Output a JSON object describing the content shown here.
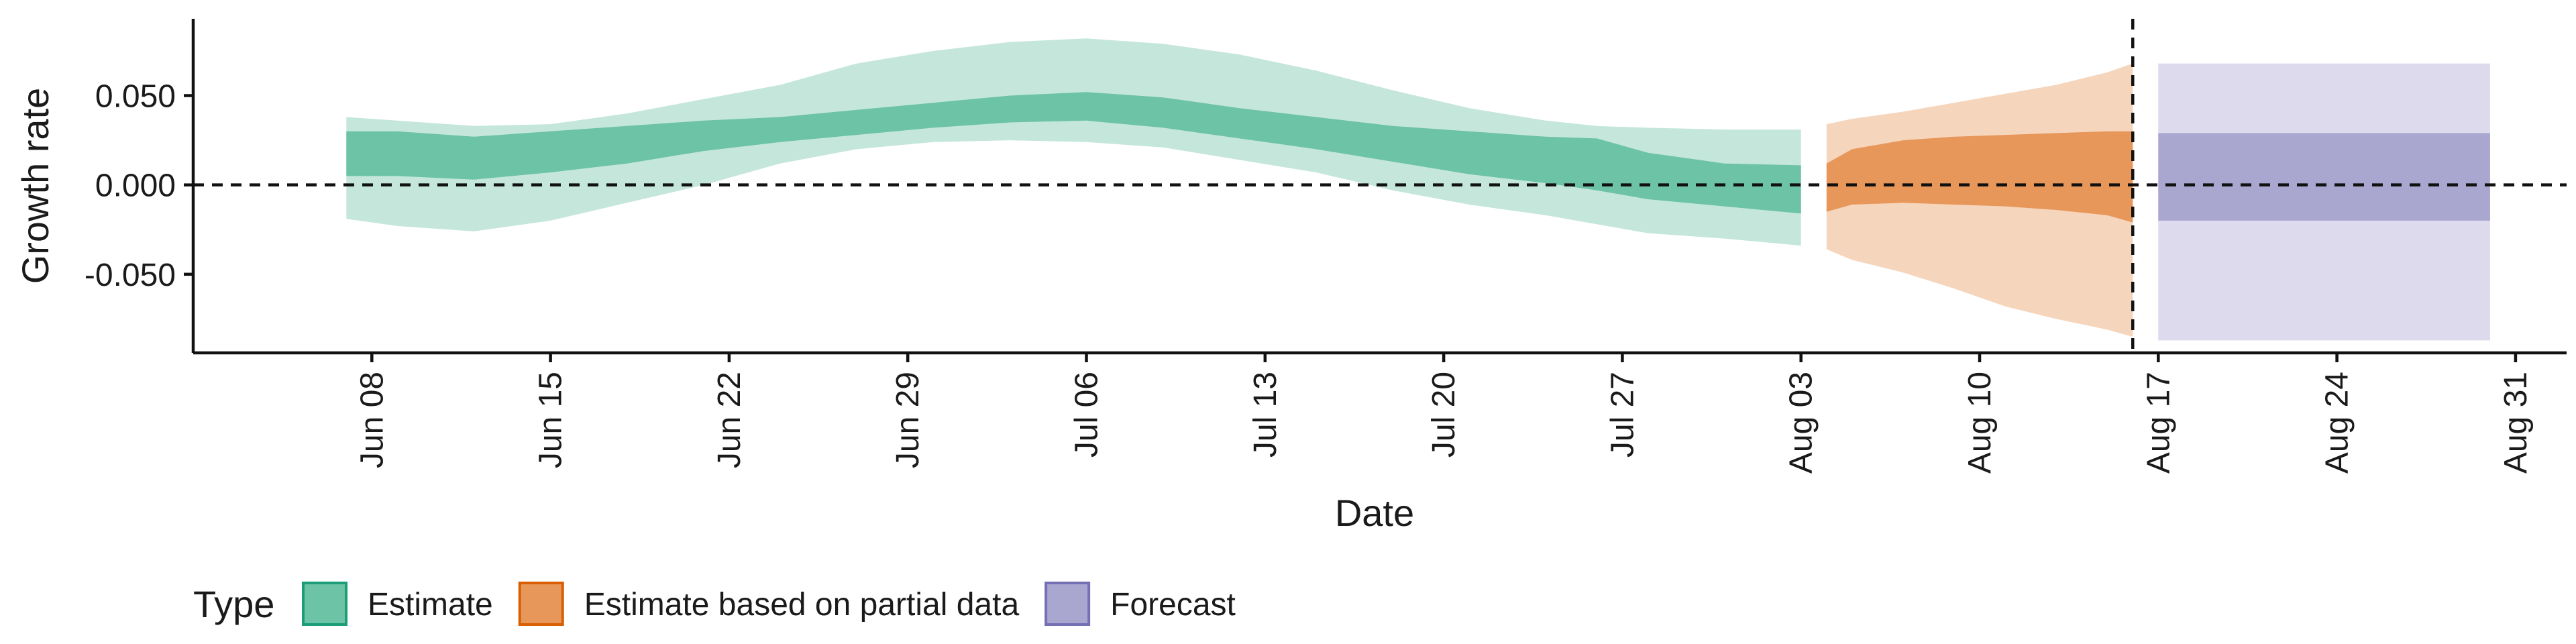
{
  "chart_data": {
    "type": "area",
    "title": "",
    "xlabel": "Date",
    "ylabel": "Growth rate",
    "x_range": [
      "2020-06-01",
      "2020-09-02"
    ],
    "ylim": [
      -0.094,
      0.093
    ],
    "y_ticks": [
      {
        "value": 0.05,
        "label": "0.050"
      },
      {
        "value": 0.0,
        "label": "0.000"
      },
      {
        "value": -0.05,
        "label": "-0.050"
      }
    ],
    "x_ticks": [
      {
        "date": "2020-06-08",
        "label": "Jun 08"
      },
      {
        "date": "2020-06-15",
        "label": "Jun 15"
      },
      {
        "date": "2020-06-22",
        "label": "Jun 22"
      },
      {
        "date": "2020-06-29",
        "label": "Jun 29"
      },
      {
        "date": "2020-07-06",
        "label": "Jul 06"
      },
      {
        "date": "2020-07-13",
        "label": "Jul 13"
      },
      {
        "date": "2020-07-20",
        "label": "Jul 20"
      },
      {
        "date": "2020-07-27",
        "label": "Jul 27"
      },
      {
        "date": "2020-08-03",
        "label": "Aug 03"
      },
      {
        "date": "2020-08-10",
        "label": "Aug 10"
      },
      {
        "date": "2020-08-17",
        "label": "Aug 17"
      },
      {
        "date": "2020-08-24",
        "label": "Aug 24"
      },
      {
        "date": "2020-08-31",
        "label": "Aug 31"
      }
    ],
    "reference_lines": {
      "horizontal_y": 0.0,
      "vertical_date": "2020-08-16"
    },
    "legend": {
      "title": "Type",
      "position": "bottom",
      "items": [
        {
          "label": "Estimate",
          "fill": "#6cc3a5",
          "stroke": "#1b9e77"
        },
        {
          "label": "Estimate based on partial data",
          "fill": "#e8975a",
          "stroke": "#d95f02"
        },
        {
          "label": "Forecast",
          "fill": "#a9a6d0",
          "stroke": "#7570b3"
        }
      ]
    },
    "series": [
      {
        "name": "Estimate",
        "inner_color": "#6cc3a5",
        "outer_color": "#c5e6db",
        "x": [
          "2020-06-07",
          "2020-06-09",
          "2020-06-12",
          "2020-06-15",
          "2020-06-18",
          "2020-06-21",
          "2020-06-24",
          "2020-06-27",
          "2020-06-30",
          "2020-07-03",
          "2020-07-06",
          "2020-07-09",
          "2020-07-12",
          "2020-07-15",
          "2020-07-18",
          "2020-07-21",
          "2020-07-24",
          "2020-07-26",
          "2020-07-28",
          "2020-07-31",
          "2020-08-03"
        ],
        "outer_upper": [
          0.038,
          0.036,
          0.033,
          0.034,
          0.04,
          0.048,
          0.056,
          0.068,
          0.075,
          0.08,
          0.082,
          0.079,
          0.073,
          0.064,
          0.053,
          0.043,
          0.036,
          0.033,
          0.032,
          0.031,
          0.031
        ],
        "inner_upper": [
          0.03,
          0.03,
          0.027,
          0.03,
          0.033,
          0.036,
          0.038,
          0.042,
          0.046,
          0.05,
          0.052,
          0.049,
          0.043,
          0.038,
          0.033,
          0.03,
          0.027,
          0.026,
          0.018,
          0.012,
          0.011
        ],
        "inner_lower": [
          0.005,
          0.005,
          0.003,
          0.007,
          0.012,
          0.019,
          0.024,
          0.028,
          0.032,
          0.035,
          0.036,
          0.032,
          0.026,
          0.02,
          0.013,
          0.006,
          0.001,
          -0.003,
          -0.008,
          -0.012,
          -0.016
        ],
        "outer_lower": [
          -0.019,
          -0.023,
          -0.026,
          -0.02,
          -0.01,
          0.0,
          0.012,
          0.02,
          0.024,
          0.025,
          0.024,
          0.021,
          0.014,
          0.007,
          -0.003,
          -0.011,
          -0.017,
          -0.022,
          -0.027,
          -0.03,
          -0.034
        ]
      },
      {
        "name": "Estimate based on partial data",
        "inner_color": "#e8975a",
        "outer_color": "#f5d5bc",
        "x": [
          "2020-08-04",
          "2020-08-05",
          "2020-08-07",
          "2020-08-09",
          "2020-08-11",
          "2020-08-13",
          "2020-08-15",
          "2020-08-16"
        ],
        "outer_upper": [
          0.034,
          0.037,
          0.041,
          0.046,
          0.051,
          0.056,
          0.063,
          0.068
        ],
        "inner_upper": [
          0.012,
          0.02,
          0.025,
          0.027,
          0.028,
          0.029,
          0.03,
          0.03
        ],
        "inner_lower": [
          -0.015,
          -0.011,
          -0.01,
          -0.011,
          -0.012,
          -0.014,
          -0.017,
          -0.021
        ],
        "outer_lower": [
          -0.036,
          -0.042,
          -0.049,
          -0.058,
          -0.068,
          -0.075,
          -0.081,
          -0.085
        ]
      },
      {
        "name": "Forecast",
        "inner_color": "#a9a6d0",
        "outer_color": "#dcdaec",
        "x": [
          "2020-08-17",
          "2020-08-30"
        ],
        "outer_upper": [
          0.068,
          0.068
        ],
        "inner_upper": [
          0.029,
          0.029
        ],
        "inner_lower": [
          -0.02,
          -0.02
        ],
        "outer_lower": [
          -0.087,
          -0.087
        ]
      }
    ]
  }
}
